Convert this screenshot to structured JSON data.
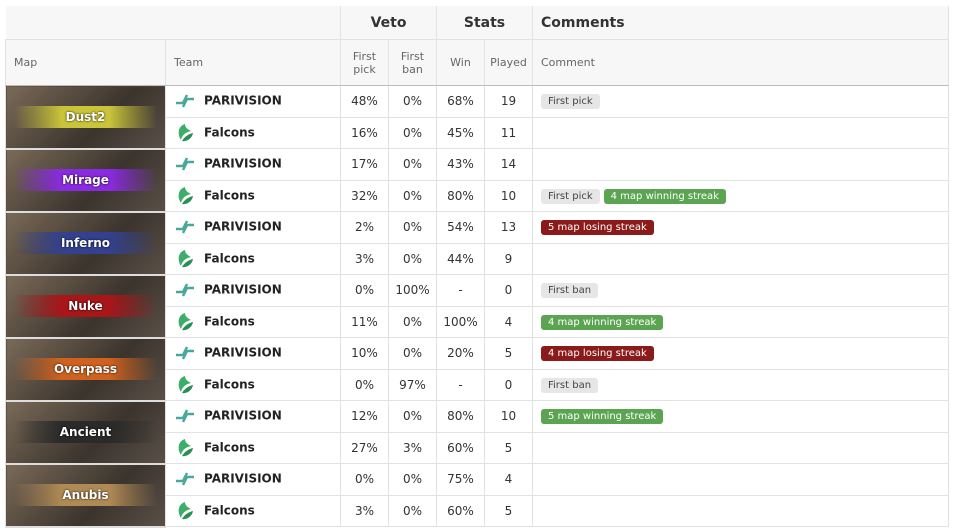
{
  "header": {
    "veto": "Veto",
    "stats": "Stats",
    "comments": "Comments",
    "map": "Map",
    "team": "Team",
    "first_pick": "First pick",
    "first_ban": "First ban",
    "win": "Win",
    "played": "Played",
    "comment": "Comment"
  },
  "maps": [
    {
      "name": "Dust2",
      "color": "#c9c43a",
      "rows": [
        {
          "team": "PARIVISION",
          "first_pick": "48%",
          "first_ban": "0%",
          "win": "68%",
          "played": "19",
          "tags": [
            {
              "text": "First pick",
              "color": "#e6e6e6"
            }
          ]
        },
        {
          "team": "Falcons",
          "first_pick": "16%",
          "first_ban": "0%",
          "win": "45%",
          "played": "11",
          "tags": []
        }
      ]
    },
    {
      "name": "Mirage",
      "color": "#8a2be2",
      "rows": [
        {
          "team": "PARIVISION",
          "first_pick": "17%",
          "first_ban": "0%",
          "win": "43%",
          "played": "14",
          "tags": []
        },
        {
          "team": "Falcons",
          "first_pick": "32%",
          "first_ban": "0%",
          "win": "80%",
          "played": "10",
          "tags": [
            {
              "text": "First pick",
              "color": "#e6e6e6"
            },
            {
              "text": "4 map winning streak",
              "color": "#5ba552"
            }
          ]
        }
      ]
    },
    {
      "name": "Inferno",
      "color": "#33418f",
      "rows": [
        {
          "team": "PARIVISION",
          "first_pick": "2%",
          "first_ban": "0%",
          "win": "54%",
          "played": "13",
          "tags": [
            {
              "text": "5 map losing streak",
              "color": "#8b1a1a"
            }
          ]
        },
        {
          "team": "Falcons",
          "first_pick": "3%",
          "first_ban": "0%",
          "win": "44%",
          "played": "9",
          "tags": []
        }
      ]
    },
    {
      "name": "Nuke",
      "color": "#a8161a",
      "rows": [
        {
          "team": "PARIVISION",
          "first_pick": "0%",
          "first_ban": "100%",
          "win": "-",
          "played": "0",
          "tags": [
            {
              "text": "First ban",
              "color": "#e6e6e6"
            }
          ]
        },
        {
          "team": "Falcons",
          "first_pick": "11%",
          "first_ban": "0%",
          "win": "100%",
          "played": "4",
          "tags": [
            {
              "text": "4 map winning streak",
              "color": "#5ba552"
            }
          ]
        }
      ]
    },
    {
      "name": "Overpass",
      "color": "#d0621f",
      "rows": [
        {
          "team": "PARIVISION",
          "first_pick": "10%",
          "first_ban": "0%",
          "win": "20%",
          "played": "5",
          "tags": [
            {
              "text": "4 map losing streak",
              "color": "#8b1a1a"
            }
          ]
        },
        {
          "team": "Falcons",
          "first_pick": "0%",
          "first_ban": "97%",
          "win": "-",
          "played": "0",
          "tags": [
            {
              "text": "First ban",
              "color": "#e6e6e6"
            }
          ]
        }
      ]
    },
    {
      "name": "Ancient",
      "color": "#2a2a2a",
      "rows": [
        {
          "team": "PARIVISION",
          "first_pick": "12%",
          "first_ban": "0%",
          "win": "80%",
          "played": "10",
          "tags": [
            {
              "text": "5 map winning streak",
              "color": "#5ba552"
            }
          ]
        },
        {
          "team": "Falcons",
          "first_pick": "27%",
          "first_ban": "3%",
          "win": "60%",
          "played": "5",
          "tags": []
        }
      ]
    },
    {
      "name": "Anubis",
      "color": "#b08a55",
      "rows": [
        {
          "team": "PARIVISION",
          "first_pick": "0%",
          "first_ban": "0%",
          "win": "75%",
          "played": "4",
          "tags": []
        },
        {
          "team": "Falcons",
          "first_pick": "3%",
          "first_ban": "0%",
          "win": "60%",
          "played": "5",
          "tags": []
        }
      ]
    }
  ]
}
